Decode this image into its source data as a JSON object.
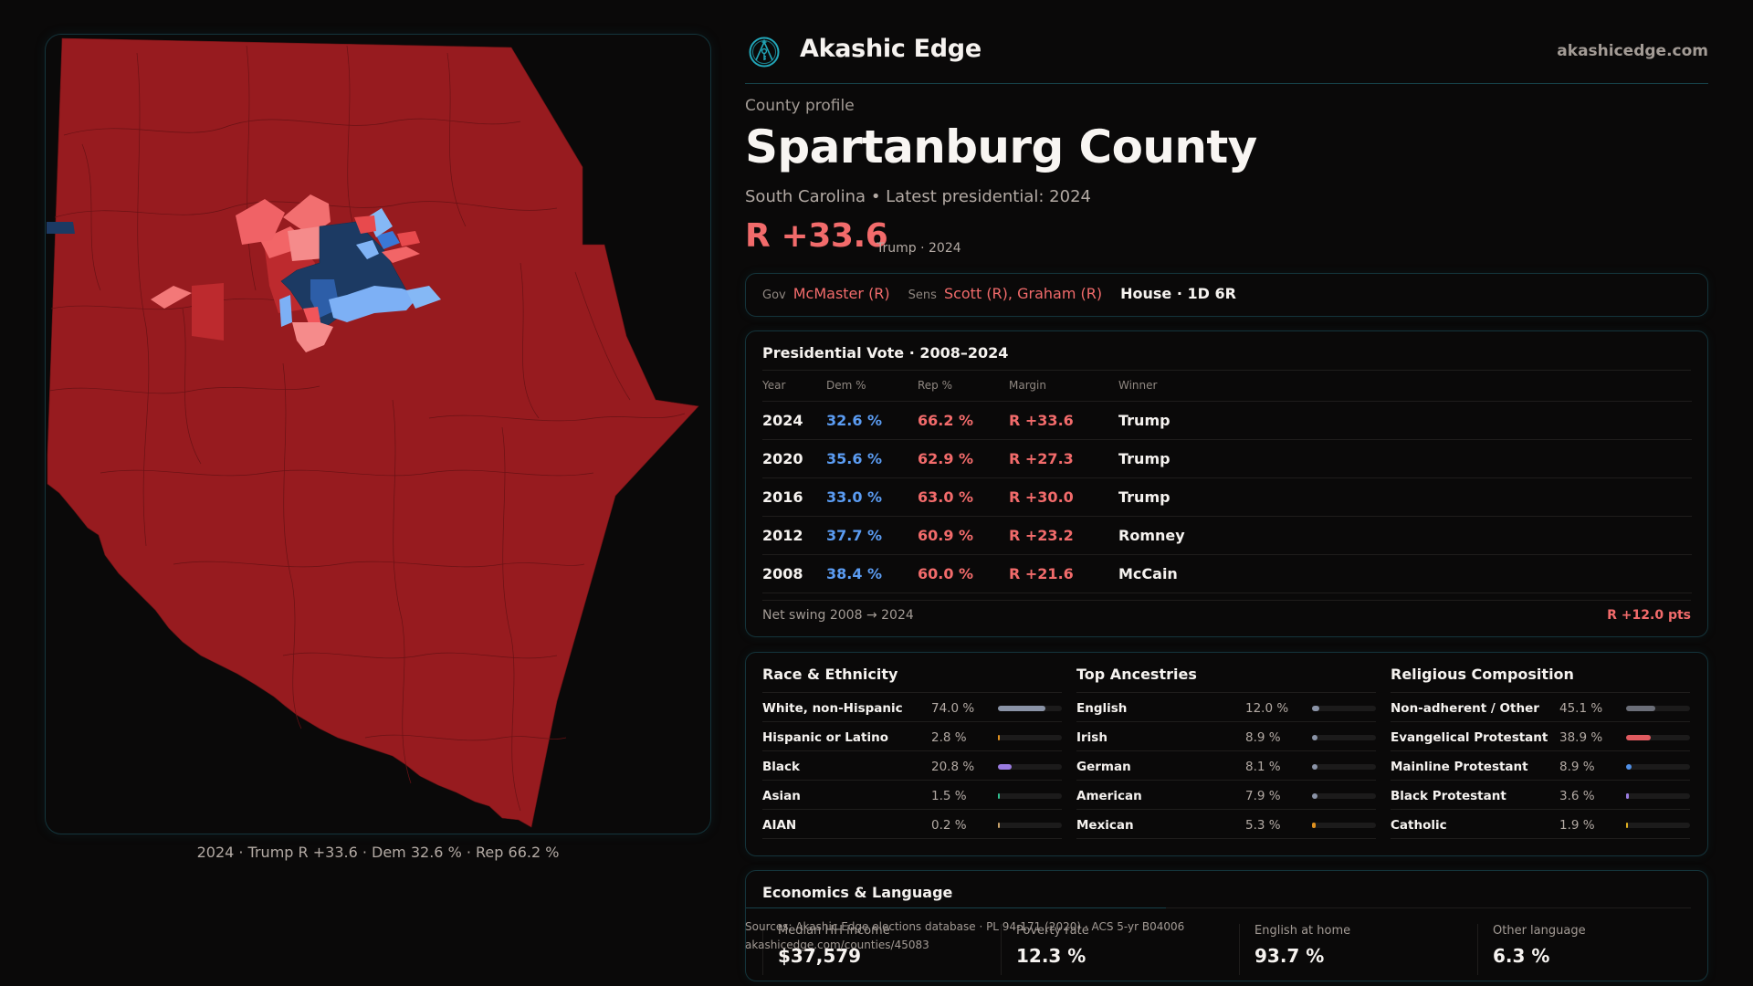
{
  "brand": {
    "name": "Akashic Edge",
    "site": "akashicedge.com",
    "logo_icon": "compass-key-emblem-icon",
    "accent_color": "#22a6b8"
  },
  "profile": {
    "eyebrow": "County profile",
    "title": "Spartanburg County",
    "subtitle": "South Carolina • Latest presidential: 2024",
    "margin": "R +33.6",
    "margin_sub": "Trump · 2024"
  },
  "officials": {
    "gov_label": "Gov",
    "gov": "McMaster (R)",
    "sens_label": "Sens",
    "sens": "Scott (R), Graham (R)",
    "house": "House · 1D 6R"
  },
  "presidential": {
    "title": "Presidential Vote · 2008–2024",
    "headers": [
      "Year",
      "Dem %",
      "Rep %",
      "Margin",
      "Winner"
    ],
    "rows": [
      {
        "year": "2024",
        "dem": "32.6 %",
        "rep": "66.2 %",
        "margin": "R +33.6",
        "winner": "Trump"
      },
      {
        "year": "2020",
        "dem": "35.6 %",
        "rep": "62.9 %",
        "margin": "R +27.3",
        "winner": "Trump"
      },
      {
        "year": "2016",
        "dem": "33.0 %",
        "rep": "63.0 %",
        "margin": "R +30.0",
        "winner": "Trump"
      },
      {
        "year": "2012",
        "dem": "37.7 %",
        "rep": "60.9 %",
        "margin": "R +23.2",
        "winner": "Romney"
      },
      {
        "year": "2008",
        "dem": "38.4 %",
        "rep": "60.0 %",
        "margin": "R +21.6",
        "winner": "McCain"
      }
    ],
    "swing_label": "Net swing 2008 → 2024",
    "swing_value": "R +12.0 pts"
  },
  "demographics": {
    "race": {
      "title": "Race & Ethnicity",
      "rows": [
        {
          "name": "White, non-Hispanic",
          "pct": "74.0 %",
          "value": 74.0,
          "color": "#8a93a6"
        },
        {
          "name": "Hispanic or Latino",
          "pct": "2.8 %",
          "value": 2.8,
          "color": "#e0911f"
        },
        {
          "name": "Black",
          "pct": "20.8 %",
          "value": 20.8,
          "color": "#9a7be0"
        },
        {
          "name": "Asian",
          "pct": "1.5 %",
          "value": 1.5,
          "color": "#2fbf8f"
        },
        {
          "name": "AIAN",
          "pct": "0.2 %",
          "value": 0.2,
          "color": "#c8a26a"
        }
      ]
    },
    "ancestry": {
      "title": "Top Ancestries",
      "rows": [
        {
          "name": "English",
          "pct": "12.0 %",
          "value": 12.0,
          "color": "#8a93a6"
        },
        {
          "name": "Irish",
          "pct": "8.9 %",
          "value": 8.9,
          "color": "#8a93a6"
        },
        {
          "name": "German",
          "pct": "8.1 %",
          "value": 8.1,
          "color": "#8a93a6"
        },
        {
          "name": "American",
          "pct": "7.9 %",
          "value": 7.9,
          "color": "#8a93a6"
        },
        {
          "name": "Mexican",
          "pct": "5.3 %",
          "value": 5.3,
          "color": "#e0911f"
        }
      ]
    },
    "religion": {
      "title": "Religious Composition",
      "rows": [
        {
          "name": "Non-adherent / Other",
          "pct": "45.1 %",
          "value": 45.1,
          "color": "#6b6e78"
        },
        {
          "name": "Evangelical Protestant",
          "pct": "38.9 %",
          "value": 38.9,
          "color": "#e05a5f"
        },
        {
          "name": "Mainline Protestant",
          "pct": "8.9 %",
          "value": 8.9,
          "color": "#4f8fe6"
        },
        {
          "name": "Black Protestant",
          "pct": "3.6 %",
          "value": 3.6,
          "color": "#9a7be0"
        },
        {
          "name": "Catholic",
          "pct": "1.9 %",
          "value": 1.9,
          "color": "#e0b020"
        }
      ]
    }
  },
  "economics": {
    "title": "Economics & Language",
    "stats": [
      {
        "label": "Median HH income",
        "value": "$37,579"
      },
      {
        "label": "Poverty rate",
        "value": "12.3 %"
      },
      {
        "label": "English at home",
        "value": "93.7 %"
      },
      {
        "label": "Other language",
        "value": "6.3 %"
      }
    ]
  },
  "sources": {
    "line1": "Sources: Akashic Edge elections database · PL 94-171 (2020) · ACS 5-yr B04006",
    "line2": "akashicedge.com/counties/45083"
  },
  "map": {
    "caption": "2024 · Trump R +33.6 · Dem 32.6 % · Rep 66.2 %",
    "legend_colors": {
      "safe_r": "#971b1f",
      "likely_r": "#bd2a2e",
      "lean_r": "#e84a4d",
      "tilt_r": "#f26567",
      "slight_r": "#f58b8b",
      "slight_d": "#85b8f5",
      "lean_d": "#3a78d6",
      "likely_d": "#2d5ea8",
      "safe_d": "#1c3a63"
    }
  }
}
